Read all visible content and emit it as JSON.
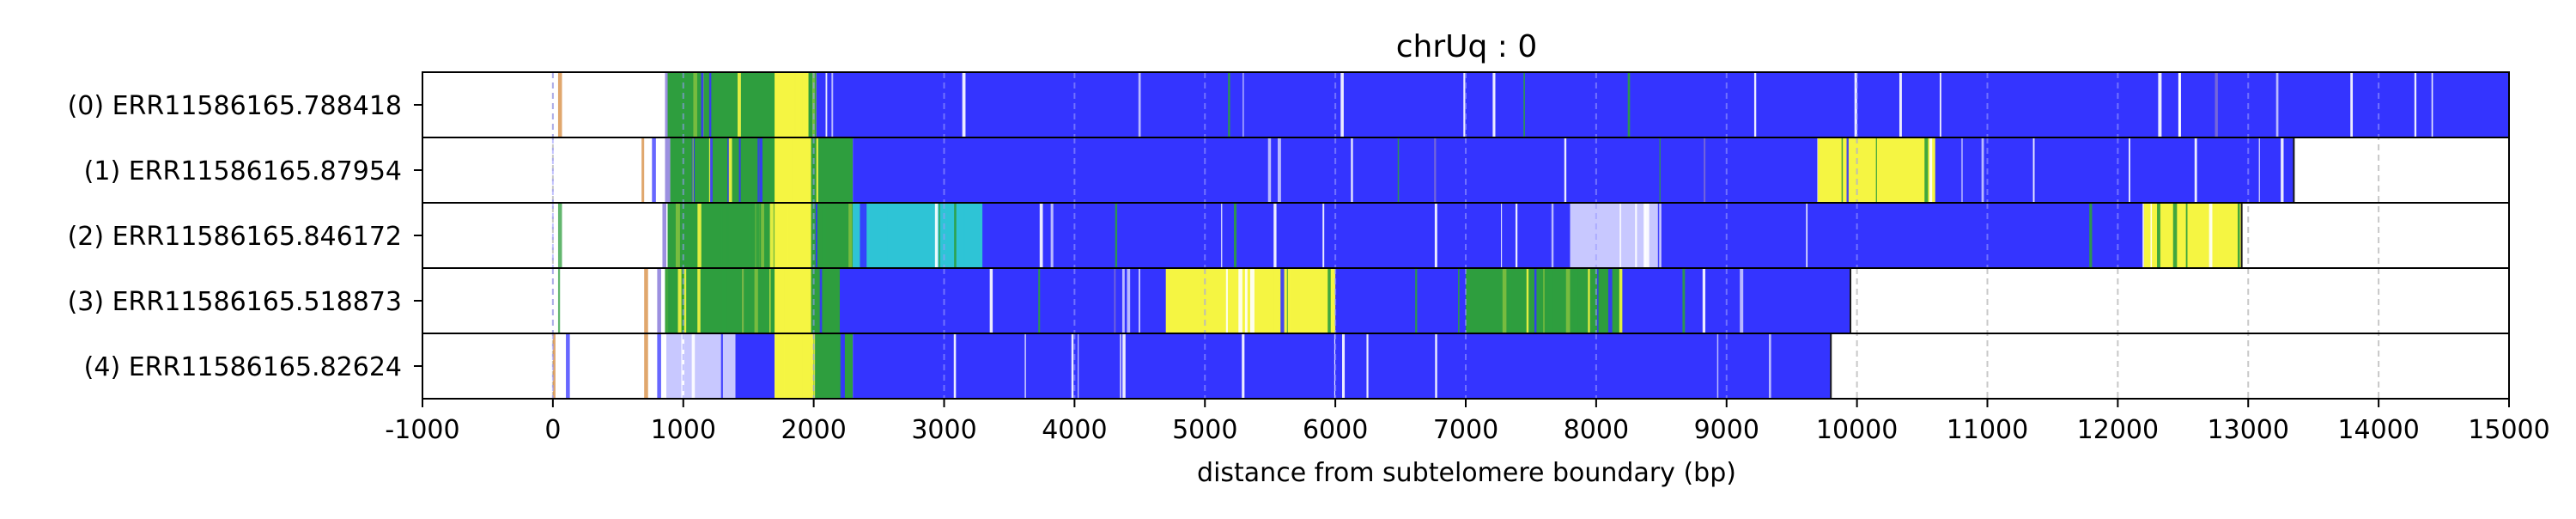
{
  "chart_data": {
    "type": "heatmap",
    "title": "chrUq : 0",
    "xlabel": "distance from subtelomere boundary (bp)",
    "ylabel": "",
    "xlim": [
      -1000,
      15000
    ],
    "xticks": [
      -1000,
      0,
      1000,
      2000,
      3000,
      4000,
      5000,
      6000,
      7000,
      8000,
      9000,
      10000,
      11000,
      12000,
      13000,
      14000,
      15000
    ],
    "grid": "vertical dashed",
    "legend": "none",
    "colors": {
      "blue": "#3434ff",
      "yellow": "#f5f542",
      "green": "#2e9e3e",
      "cyan": "#2ec4d6",
      "light": "#c8c8ff",
      "grid": "#c8c8c8"
    },
    "reads": [
      {
        "label": "(0) ERR11586165.788418",
        "end": 15000,
        "marks": [
          [
            40,
            70
          ],
          [
            860,
            885
          ],
          [
            900,
            930
          ]
        ],
        "blocks": [
          {
            "start": 880,
            "end": 2020,
            "color": "mixed-green"
          },
          {
            "start": 1700,
            "end": 1960,
            "color": "yellow"
          },
          {
            "start": 2020,
            "end": 15000,
            "color": "blue"
          }
        ]
      },
      {
        "label": "(1) ERR11586165.87954",
        "end": 13350,
        "marks": [
          [
            680,
            700
          ],
          [
            760,
            790
          ],
          [
            860,
            900
          ]
        ],
        "blocks": [
          {
            "start": 900,
            "end": 2300,
            "color": "mixed-green"
          },
          {
            "start": 1700,
            "end": 1980,
            "color": "yellow"
          },
          {
            "start": 2300,
            "end": 13350,
            "color": "blue"
          },
          {
            "start": 9700,
            "end": 10600,
            "color": "mixed-yellow"
          }
        ]
      },
      {
        "label": "(2) ERR11586165.846172",
        "end": 12950,
        "marks": [
          [
            40,
            70
          ],
          [
            840,
            870
          ]
        ],
        "blocks": [
          {
            "start": 880,
            "end": 2300,
            "color": "mixed-green"
          },
          {
            "start": 1700,
            "end": 1980,
            "color": "yellow"
          },
          {
            "start": 2300,
            "end": 3300,
            "color": "mixed-cyan"
          },
          {
            "start": 3300,
            "end": 12950,
            "color": "blue"
          },
          {
            "start": 7800,
            "end": 8500,
            "color": "mixed-light"
          },
          {
            "start": 12200,
            "end": 12950,
            "color": "mixed-yellow"
          }
        ]
      },
      {
        "label": "(3) ERR11586165.518873",
        "end": 9950,
        "marks": [
          [
            40,
            55
          ],
          [
            700,
            730
          ],
          [
            800,
            830
          ]
        ],
        "blocks": [
          {
            "start": 860,
            "end": 2200,
            "color": "mixed-green"
          },
          {
            "start": 1700,
            "end": 1980,
            "color": "yellow"
          },
          {
            "start": 2200,
            "end": 9950,
            "color": "blue"
          },
          {
            "start": 4700,
            "end": 6000,
            "color": "mixed-yellow"
          },
          {
            "start": 7000,
            "end": 8200,
            "color": "mixed-green"
          }
        ]
      },
      {
        "label": "(4) ERR11586165.82624",
        "end": 9800,
        "marks": [
          [
            0,
            20
          ],
          [
            100,
            130
          ],
          [
            700,
            730
          ],
          [
            800,
            830
          ]
        ],
        "blocks": [
          {
            "start": 870,
            "end": 1400,
            "color": "mixed-light"
          },
          {
            "start": 1400,
            "end": 1700,
            "color": "blue"
          },
          {
            "start": 1700,
            "end": 2000,
            "color": "yellow"
          },
          {
            "start": 2000,
            "end": 2300,
            "color": "mixed-green"
          },
          {
            "start": 2300,
            "end": 9800,
            "color": "blue"
          }
        ]
      }
    ]
  }
}
